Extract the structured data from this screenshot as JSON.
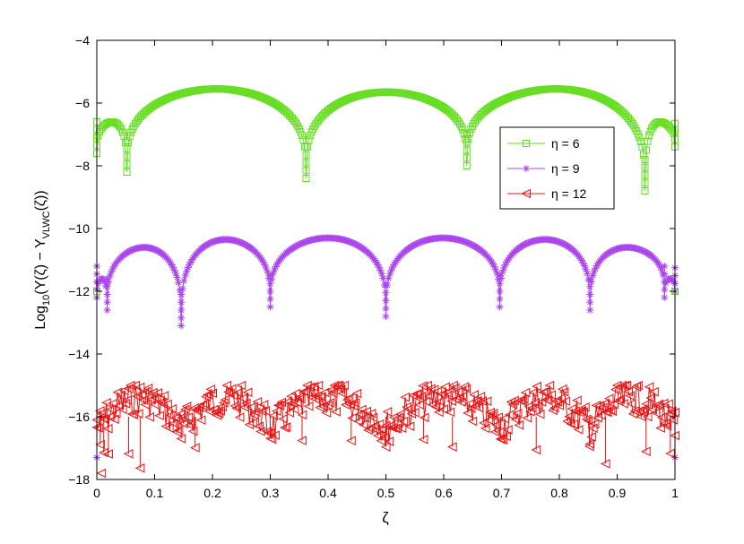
{
  "chart_data": {
    "type": "line",
    "xlabel": "ζ",
    "ylabel_main": "Log",
    "ylabel_sub1": "10",
    "ylabel_mid": "(Y(ζ) − Y",
    "ylabel_sub2": "VLWC",
    "ylabel_end": "(ζ))",
    "xlim": [
      0,
      1
    ],
    "ylim": [
      -18,
      -4
    ],
    "x_ticks": [
      "0",
      "0.1",
      "0.2",
      "0.3",
      "0.4",
      "0.5",
      "0.6",
      "0.7",
      "0.8",
      "0.9",
      "1"
    ],
    "y_ticks": [
      "−4",
      "−6",
      "−8",
      "−10",
      "−12",
      "−14",
      "−16",
      "−18"
    ],
    "grid": false,
    "legend_position": "upper-right",
    "series": [
      {
        "name": "η = 6",
        "color": "#66dd22",
        "marker": "square",
        "nodes": [
          0,
          0.052,
          0.362,
          0.64,
          0.948,
          1
        ],
        "dips": [
          -7.6,
          -8.2,
          -8.4,
          -8.0,
          -8.8,
          -7.4
        ],
        "peaks": [
          -6.6,
          -5.55,
          -5.65,
          -5.55,
          -6.6
        ],
        "edge_value": -12.0
      },
      {
        "name": "η = 9",
        "color": "#aa44ee",
        "marker": "asterisk",
        "nodes": [
          0,
          0.018,
          0.146,
          0.3,
          0.5,
          0.697,
          0.853,
          0.982,
          1
        ],
        "dips": [
          -12.2,
          -12.6,
          -13.1,
          -12.5,
          -12.8,
          -12.5,
          -12.6,
          -12.2,
          -12.0
        ],
        "peaks": [
          -11.6,
          -10.6,
          -10.35,
          -10.3,
          -10.3,
          -10.35,
          -10.6,
          -11.6
        ],
        "edge_value": -17.3
      },
      {
        "name": "η = 12",
        "color": "#ee1111",
        "marker": "triangle-left",
        "baseline_min": -17.8,
        "baseline_max": -15.0,
        "dips_x": [
          0.006,
          0.012,
          0.02,
          0.055,
          0.075,
          0.146,
          0.17,
          0.3,
          0.355,
          0.44,
          0.5,
          0.565,
          0.615,
          0.698,
          0.76,
          0.852,
          0.88,
          0.95,
          0.992
        ],
        "edge_value": -16.1
      }
    ]
  }
}
